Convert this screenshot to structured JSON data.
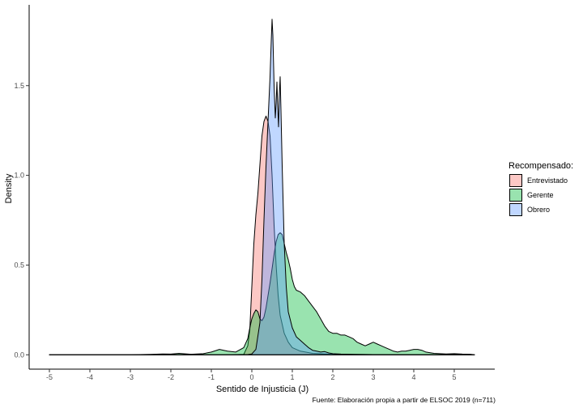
{
  "chart_data": {
    "type": "area",
    "subtype": "density",
    "title": "",
    "xlabel": "Sentido de Injusticia (J)",
    "ylabel": "Density",
    "caption": "Fuente: Elaboración propia  a partir de ELSOC 2019 (n=711)",
    "xlim": [
      -5.5,
      6
    ],
    "ylim": [
      -0.08,
      1.95
    ],
    "x_ticks": [
      -5,
      -4,
      -3,
      -2,
      -1,
      0,
      1,
      2,
      3,
      4,
      5
    ],
    "x_tick_labels": [
      "-5",
      "-4",
      "-3",
      "-2",
      "-1",
      "0",
      "1",
      "2",
      "3",
      "4",
      "5"
    ],
    "y_ticks": [
      0,
      0.5,
      1,
      1.5
    ],
    "y_tick_labels": [
      "0.0",
      "0.5",
      "1.0",
      "1.5"
    ],
    "grid": false,
    "legend": {
      "title": "Recompensado:",
      "position": "right",
      "items": [
        "Entrevistado",
        "Gerente",
        "Obrero"
      ]
    },
    "series": [
      {
        "name": "Entrevistado",
        "color": "#F8766D",
        "fill_opacity": 0.4,
        "points": [
          [
            -5,
            0
          ],
          [
            -4.5,
            0
          ],
          [
            -4,
            0
          ],
          [
            -3.5,
            0
          ],
          [
            -3,
            0
          ],
          [
            -2.5,
            0
          ],
          [
            -2,
            0
          ],
          [
            -1.5,
            0
          ],
          [
            -1,
            0
          ],
          [
            -0.5,
            0
          ],
          [
            -0.2,
            0.002
          ],
          [
            -0.1,
            0.05
          ],
          [
            -0.05,
            0.14
          ],
          [
            0,
            0.38
          ],
          [
            0.05,
            0.62
          ],
          [
            0.1,
            0.78
          ],
          [
            0.15,
            0.9
          ],
          [
            0.2,
            1.06
          ],
          [
            0.25,
            1.22
          ],
          [
            0.3,
            1.3
          ],
          [
            0.35,
            1.33
          ],
          [
            0.4,
            1.3
          ],
          [
            0.45,
            1.22
          ],
          [
            0.5,
            1.0
          ],
          [
            0.55,
            0.72
          ],
          [
            0.6,
            0.5
          ],
          [
            0.65,
            0.33
          ],
          [
            0.7,
            0.22
          ],
          [
            0.8,
            0.12
          ],
          [
            0.9,
            0.07
          ],
          [
            1.0,
            0.04
          ],
          [
            1.2,
            0.02
          ],
          [
            1.5,
            0.008
          ],
          [
            2,
            0.003
          ],
          [
            3,
            0.001
          ],
          [
            5.5,
            0
          ]
        ]
      },
      {
        "name": "Gerente",
        "color": "#00BA38",
        "fill_opacity": 0.4,
        "points": [
          [
            -5,
            0
          ],
          [
            -4,
            0
          ],
          [
            -3,
            0
          ],
          [
            -2.5,
            0.002
          ],
          [
            -2.2,
            0.005
          ],
          [
            -2,
            0.004
          ],
          [
            -1.8,
            0.008
          ],
          [
            -1.5,
            0.003
          ],
          [
            -1.2,
            0.006
          ],
          [
            -1.0,
            0.015
          ],
          [
            -0.8,
            0.03
          ],
          [
            -0.6,
            0.02
          ],
          [
            -0.4,
            0.015
          ],
          [
            -0.2,
            0.04
          ],
          [
            -0.1,
            0.09
          ],
          [
            -0.05,
            0.15
          ],
          [
            0,
            0.2
          ],
          [
            0.05,
            0.23
          ],
          [
            0.1,
            0.25
          ],
          [
            0.15,
            0.24
          ],
          [
            0.2,
            0.2
          ],
          [
            0.25,
            0.19
          ],
          [
            0.3,
            0.21
          ],
          [
            0.35,
            0.26
          ],
          [
            0.4,
            0.33
          ],
          [
            0.45,
            0.4
          ],
          [
            0.5,
            0.48
          ],
          [
            0.55,
            0.56
          ],
          [
            0.6,
            0.63
          ],
          [
            0.65,
            0.67
          ],
          [
            0.7,
            0.68
          ],
          [
            0.75,
            0.67
          ],
          [
            0.8,
            0.62
          ],
          [
            0.85,
            0.57
          ],
          [
            0.9,
            0.53
          ],
          [
            0.95,
            0.48
          ],
          [
            1.0,
            0.42
          ],
          [
            1.05,
            0.38
          ],
          [
            1.1,
            0.36
          ],
          [
            1.2,
            0.35
          ],
          [
            1.3,
            0.33
          ],
          [
            1.4,
            0.3
          ],
          [
            1.5,
            0.27
          ],
          [
            1.6,
            0.24
          ],
          [
            1.7,
            0.2
          ],
          [
            1.8,
            0.16
          ],
          [
            1.9,
            0.13
          ],
          [
            2.0,
            0.12
          ],
          [
            2.1,
            0.12
          ],
          [
            2.2,
            0.11
          ],
          [
            2.3,
            0.11
          ],
          [
            2.4,
            0.1
          ],
          [
            2.5,
            0.09
          ],
          [
            2.6,
            0.07
          ],
          [
            2.7,
            0.06
          ],
          [
            2.8,
            0.05
          ],
          [
            2.9,
            0.06
          ],
          [
            3.0,
            0.07
          ],
          [
            3.1,
            0.06
          ],
          [
            3.2,
            0.05
          ],
          [
            3.3,
            0.04
          ],
          [
            3.4,
            0.03
          ],
          [
            3.5,
            0.02
          ],
          [
            3.6,
            0.015
          ],
          [
            3.7,
            0.02
          ],
          [
            3.8,
            0.02
          ],
          [
            3.9,
            0.025
          ],
          [
            4.0,
            0.03
          ],
          [
            4.1,
            0.03
          ],
          [
            4.2,
            0.025
          ],
          [
            4.3,
            0.015
          ],
          [
            4.5,
            0.008
          ],
          [
            4.8,
            0.005
          ],
          [
            5.0,
            0.006
          ],
          [
            5.2,
            0.004
          ],
          [
            5.4,
            0.003
          ],
          [
            5.5,
            0
          ]
        ]
      },
      {
        "name": "Obrero",
        "color": "#619CFF",
        "fill_opacity": 0.4,
        "points": [
          [
            -5,
            0
          ],
          [
            -4.5,
            0
          ],
          [
            -4,
            0
          ],
          [
            -3.5,
            0
          ],
          [
            -3,
            0
          ],
          [
            -2.5,
            0
          ],
          [
            -2,
            0
          ],
          [
            -1.5,
            0
          ],
          [
            -1,
            0
          ],
          [
            -0.5,
            0
          ],
          [
            -0.1,
            0.001
          ],
          [
            0,
            0.005
          ],
          [
            0.1,
            0.03
          ],
          [
            0.2,
            0.18
          ],
          [
            0.25,
            0.42
          ],
          [
            0.3,
            0.75
          ],
          [
            0.35,
            1.05
          ],
          [
            0.4,
            1.3
          ],
          [
            0.45,
            1.55
          ],
          [
            0.48,
            1.75
          ],
          [
            0.5,
            1.87
          ],
          [
            0.52,
            1.78
          ],
          [
            0.55,
            1.5
          ],
          [
            0.58,
            1.32
          ],
          [
            0.6,
            1.4
          ],
          [
            0.62,
            1.52
          ],
          [
            0.64,
            1.38
          ],
          [
            0.66,
            1.27
          ],
          [
            0.68,
            1.45
          ],
          [
            0.7,
            1.55
          ],
          [
            0.72,
            1.36
          ],
          [
            0.75,
            1.05
          ],
          [
            0.8,
            0.62
          ],
          [
            0.85,
            0.38
          ],
          [
            0.9,
            0.24
          ],
          [
            1.0,
            0.15
          ],
          [
            1.1,
            0.1
          ],
          [
            1.2,
            0.08
          ],
          [
            1.3,
            0.06
          ],
          [
            1.4,
            0.04
          ],
          [
            1.5,
            0.025
          ],
          [
            1.6,
            0.02
          ],
          [
            1.7,
            0.015
          ],
          [
            1.8,
            0.018
          ],
          [
            1.9,
            0.01
          ],
          [
            2.0,
            0.006
          ],
          [
            2.2,
            0.004
          ],
          [
            2.5,
            0.002
          ],
          [
            3.0,
            0.001
          ],
          [
            5.5,
            0
          ]
        ]
      }
    ]
  }
}
